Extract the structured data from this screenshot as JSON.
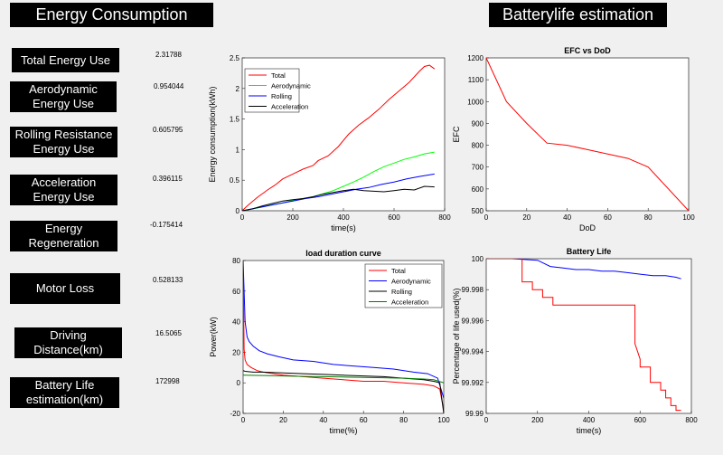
{
  "headers": {
    "left": "Energy Consumption",
    "right": "Batterylife estimation"
  },
  "metrics": [
    {
      "label": "Total Energy Use",
      "value": "2.31788"
    },
    {
      "label": "Aerodynamic\nEnergy Use",
      "value": "0.954044"
    },
    {
      "label": "Rolling Resistance\nEnergy Use",
      "value": "0.605795"
    },
    {
      "label": "Acceleration\nEnergy Use",
      "value": "0.396115"
    },
    {
      "label": "Energy\nRegeneration",
      "value": "-0.175414"
    },
    {
      "label": "Motor Loss",
      "value": "0.528133"
    },
    {
      "label": "Driving\nDistance(km)",
      "value": "16.5065"
    },
    {
      "label": "Battery Life\nestimation(km)",
      "value": "172998"
    }
  ],
  "colors": {
    "red": "#ff0000",
    "green": "#00ff00",
    "blue": "#0000ff",
    "black": "#000000",
    "darkgreen": "#008000"
  },
  "chart_data": [
    {
      "id": "energy",
      "type": "line",
      "title": "",
      "xlabel": "time(s)",
      "ylabel": "Energy consumption(kWh)",
      "xlim": [
        0,
        800
      ],
      "ylim": [
        0,
        2.5
      ],
      "xticks": [
        "0",
        "200",
        "400",
        "600",
        "800"
      ],
      "yticks": [
        "0",
        "0.5",
        "1",
        "1.5",
        "2",
        "2.5"
      ],
      "legend": [
        "Total",
        "Aerodynamic",
        "Rolling",
        "Acceleration"
      ],
      "legend_position": "top-left",
      "series": [
        {
          "name": "Total",
          "color": "red",
          "x": [
            0,
            20,
            40,
            60,
            80,
            100,
            130,
            160,
            200,
            240,
            280,
            300,
            340,
            380,
            420,
            460,
            500,
            540,
            580,
            620,
            660,
            700,
            720,
            740,
            760
          ],
          "y": [
            0,
            0.08,
            0.15,
            0.22,
            0.28,
            0.34,
            0.42,
            0.52,
            0.6,
            0.68,
            0.74,
            0.82,
            0.9,
            1.05,
            1.25,
            1.4,
            1.52,
            1.66,
            1.82,
            1.96,
            2.1,
            2.28,
            2.36,
            2.38,
            2.32
          ]
        },
        {
          "name": "Aerodynamic",
          "color": "green",
          "x": [
            0,
            40,
            80,
            120,
            160,
            200,
            240,
            280,
            320,
            360,
            400,
            440,
            480,
            520,
            560,
            600,
            640,
            680,
            720,
            760
          ],
          "y": [
            0,
            0.03,
            0.06,
            0.1,
            0.13,
            0.17,
            0.2,
            0.23,
            0.28,
            0.33,
            0.4,
            0.47,
            0.55,
            0.64,
            0.72,
            0.78,
            0.84,
            0.88,
            0.93,
            0.96
          ]
        },
        {
          "name": "Rolling",
          "color": "blue",
          "x": [
            0,
            50,
            100,
            150,
            200,
            250,
            300,
            350,
            400,
            450,
            500,
            550,
            600,
            650,
            700,
            760
          ],
          "y": [
            0,
            0.04,
            0.08,
            0.12,
            0.16,
            0.2,
            0.23,
            0.27,
            0.31,
            0.35,
            0.38,
            0.43,
            0.47,
            0.52,
            0.56,
            0.6
          ]
        },
        {
          "name": "Acceleration",
          "color": "black",
          "x": [
            0,
            40,
            80,
            120,
            160,
            200,
            240,
            280,
            320,
            360,
            400,
            440,
            480,
            520,
            560,
            600,
            640,
            680,
            720,
            760
          ],
          "y": [
            0,
            0.03,
            0.08,
            0.12,
            0.16,
            0.18,
            0.2,
            0.23,
            0.27,
            0.3,
            0.33,
            0.35,
            0.33,
            0.32,
            0.31,
            0.33,
            0.35,
            0.34,
            0.4,
            0.39
          ]
        }
      ]
    },
    {
      "id": "ldc",
      "type": "line",
      "title": "load duration curve",
      "xlabel": "time(%)",
      "ylabel": "Power(kW)",
      "xlim": [
        0,
        100
      ],
      "ylim": [
        -20,
        80
      ],
      "xticks": [
        "0",
        "20",
        "40",
        "60",
        "80",
        "100"
      ],
      "yticks": [
        "-20",
        "0",
        "20",
        "40",
        "60",
        "80"
      ],
      "legend": [
        "Total",
        "Aerodynamic",
        "Rolling",
        "Acceleration"
      ],
      "legend_position": "top-right",
      "series": [
        {
          "name": "Total",
          "color": "red",
          "x": [
            0,
            0.5,
            1,
            2,
            4,
            7,
            10,
            20,
            30,
            40,
            50,
            60,
            70,
            80,
            90,
            95,
            98,
            100
          ],
          "y": [
            80,
            22,
            15,
            12,
            10,
            8,
            7,
            5,
            4,
            3,
            2,
            1,
            1,
            0,
            -1,
            -2,
            -4,
            -18
          ]
        },
        {
          "name": "Aerodynamic",
          "color": "blue",
          "x": [
            0,
            1,
            2,
            3,
            5,
            8,
            12,
            18,
            25,
            35,
            45,
            55,
            65,
            75,
            85,
            92,
            97,
            100
          ],
          "y": [
            80,
            40,
            30,
            27,
            24,
            21,
            19,
            17,
            15,
            14,
            12,
            11,
            10,
            9,
            7,
            6,
            3,
            -10
          ]
        },
        {
          "name": "Rolling",
          "color": "black",
          "x": [
            0,
            1,
            5,
            10,
            20,
            30,
            40,
            50,
            60,
            70,
            80,
            90,
            95,
            98,
            100
          ],
          "y": [
            8,
            7.5,
            7,
            7,
            6.5,
            6,
            5.5,
            5,
            4.5,
            4,
            3,
            2,
            1,
            0,
            -20
          ]
        },
        {
          "name": "Acceleration",
          "color": "darkgreen",
          "x": [
            0,
            10,
            20,
            30,
            40,
            50,
            60,
            70,
            80,
            90,
            95,
            100
          ],
          "y": [
            5,
            4.8,
            4.5,
            4.2,
            4,
            3.8,
            3.5,
            3.3,
            3,
            2.5,
            2,
            0
          ]
        }
      ]
    },
    {
      "id": "efc",
      "type": "line",
      "title": "EFC vs DoD",
      "xlabel": "DoD",
      "ylabel": "EFC",
      "xlim": [
        0,
        100
      ],
      "ylim": [
        500,
        1200
      ],
      "xticks": [
        "0",
        "20",
        "40",
        "60",
        "80",
        "100"
      ],
      "yticks": [
        "500",
        "600",
        "700",
        "800",
        "900",
        "1000",
        "1100",
        "1200"
      ],
      "series": [
        {
          "name": "",
          "color": "red",
          "x": [
            0,
            10,
            20,
            30,
            40,
            50,
            60,
            70,
            80,
            100
          ],
          "y": [
            1200,
            1000,
            900,
            810,
            800,
            780,
            760,
            740,
            700,
            500
          ]
        }
      ]
    },
    {
      "id": "life",
      "type": "line",
      "title": "Battery Life",
      "xlabel": "time(s)",
      "ylabel": "Percentage of life used(%)",
      "xlim": [
        0,
        800
      ],
      "ylim": [
        99.99,
        100
      ],
      "xticks": [
        "0",
        "200",
        "400",
        "600",
        "800"
      ],
      "yticks": [
        "99.99",
        "99.992",
        "99.994",
        "99.996",
        "99.998",
        "100"
      ],
      "series": [
        {
          "name": "",
          "color": "blue",
          "x": [
            0,
            100,
            200,
            250,
            300,
            350,
            400,
            450,
            500,
            550,
            600,
            650,
            700,
            740,
            760
          ],
          "y": [
            100,
            100,
            99.9999,
            99.9995,
            99.9994,
            99.9993,
            99.9993,
            99.9992,
            99.9992,
            99.9991,
            99.999,
            99.9989,
            99.9989,
            99.9988,
            99.9987
          ]
        },
        {
          "name": "",
          "color": "red",
          "x": [
            0,
            140,
            140,
            180,
            180,
            220,
            220,
            260,
            260,
            580,
            580,
            600,
            600,
            640,
            640,
            680,
            680,
            700,
            700,
            720,
            720,
            740,
            740,
            760
          ],
          "y": [
            100,
            100,
            99.9985,
            99.9985,
            99.998,
            99.998,
            99.9975,
            99.9975,
            99.997,
            99.997,
            99.9945,
            99.9935,
            99.993,
            99.993,
            99.992,
            99.992,
            99.9915,
            99.9915,
            99.991,
            99.991,
            99.9905,
            99.9905,
            99.9902,
            99.9902
          ]
        }
      ]
    }
  ]
}
